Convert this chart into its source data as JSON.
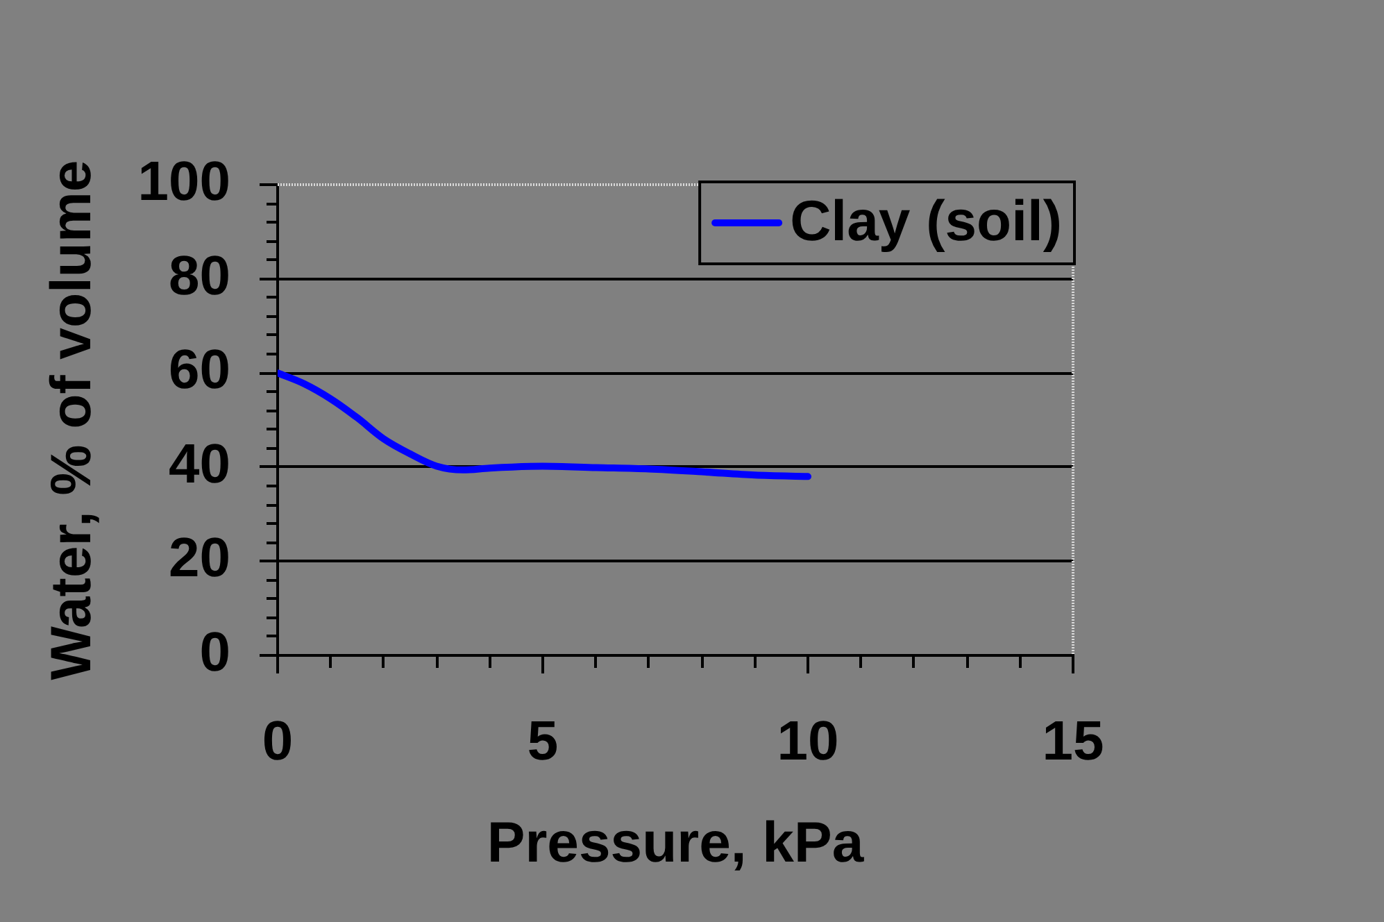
{
  "chart_data": {
    "type": "line",
    "xlabel": "Pressure, kPa",
    "ylabel": "Water, % of volume",
    "x": [
      0,
      0.5,
      1,
      1.5,
      2,
      2.5,
      3,
      3.5,
      4,
      5,
      6,
      7,
      8,
      9,
      10
    ],
    "series": [
      {
        "name": "Clay (soil)",
        "color": "#0000ff",
        "values": [
          60,
          57.7,
          54.5,
          50.5,
          46,
          42.8,
          40.2,
          39.4,
          39.8,
          40.2,
          39.9,
          39.6,
          39.0,
          38.3,
          38.0
        ]
      }
    ],
    "xlim": [
      0,
      15
    ],
    "ylim": [
      0,
      100
    ],
    "xticks": [
      0,
      {
        "value": 1,
        "label": null
      },
      {
        "value": 2,
        "label": null
      },
      {
        "value": 3,
        "label": null
      },
      {
        "value": 4,
        "label": null
      },
      5,
      {
        "value": 6,
        "label": null
      },
      {
        "value": 7,
        "label": null
      },
      {
        "value": 8,
        "label": null
      },
      {
        "value": 9,
        "label": null
      },
      10,
      {
        "value": 11,
        "label": null
      },
      {
        "value": 12,
        "label": null
      },
      {
        "value": 13,
        "label": null
      },
      {
        "value": 14,
        "label": null
      },
      15
    ],
    "yticks": [
      0,
      {
        "value": 4,
        "label": null
      },
      {
        "value": 8,
        "label": null
      },
      {
        "value": 12,
        "label": null
      },
      {
        "value": 16,
        "label": null
      },
      20,
      {
        "value": 24,
        "label": null
      },
      {
        "value": 28,
        "label": null
      },
      {
        "value": 32,
        "label": null
      },
      {
        "value": 36,
        "label": null
      },
      40,
      {
        "value": 44,
        "label": null
      },
      {
        "value": 48,
        "label": null
      },
      {
        "value": 52,
        "label": null
      },
      {
        "value": 56,
        "label": null
      },
      60,
      {
        "value": 64,
        "label": null
      },
      {
        "value": 68,
        "label": null
      },
      {
        "value": 72,
        "label": null
      },
      {
        "value": 76,
        "label": null
      },
      80,
      {
        "value": 84,
        "label": null
      },
      {
        "value": 88,
        "label": null
      },
      {
        "value": 92,
        "label": null
      },
      {
        "value": 96,
        "label": null
      },
      100
    ],
    "grid": "y",
    "legend": "top right",
    "marker": "none",
    "line_style": "solid"
  }
}
